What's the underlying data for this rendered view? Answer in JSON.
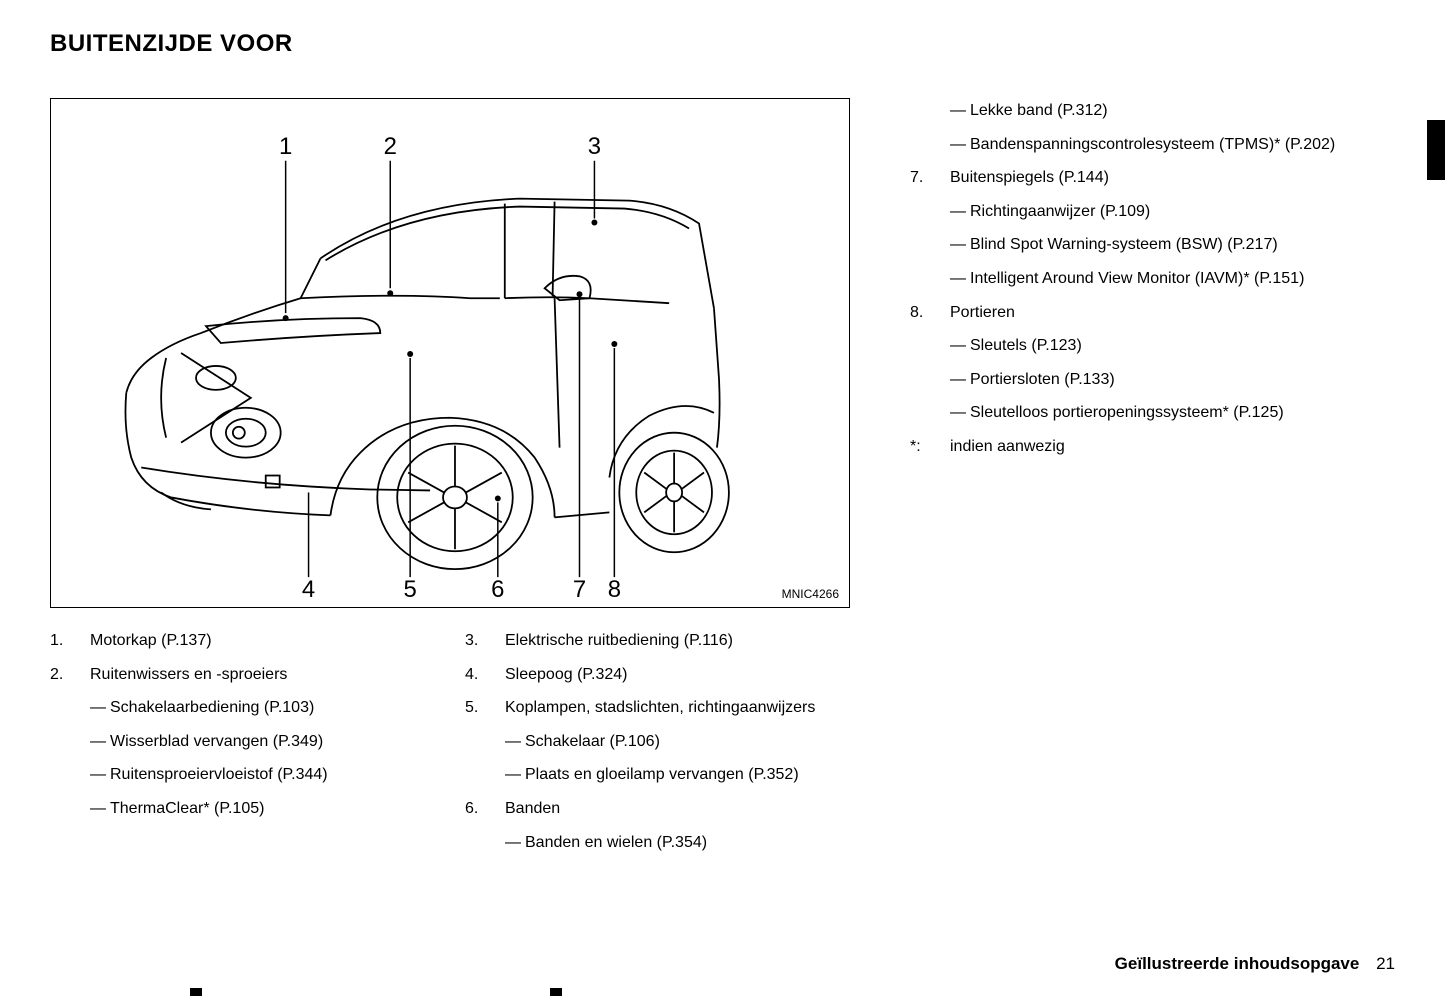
{
  "title": "BUITENZIJDE VOOR",
  "diagram": {
    "image_code": "MNIC4266",
    "top_labels": [
      "1",
      "2",
      "3"
    ],
    "bottom_labels": [
      "4",
      "5",
      "6",
      "7",
      "8"
    ]
  },
  "columns": {
    "col1": [
      {
        "num": "1.",
        "text": "Motorkap (P.137)",
        "subs": []
      },
      {
        "num": "2.",
        "text": "Ruitenwissers en -sproeiers",
        "subs": [
          "Schakelaarbediening (P.103)",
          "Wisserblad vervangen (P.349)",
          "Ruitensproeiervloeistof (P.344)",
          "ThermaClear* (P.105)"
        ]
      }
    ],
    "col2": [
      {
        "num": "3.",
        "text": "Elektrische ruitbediening (P.116)",
        "subs": []
      },
      {
        "num": "4.",
        "text": "Sleepoog (P.324)",
        "subs": []
      },
      {
        "num": "5.",
        "text": "Koplampen, stadslichten, richtingaanwijzers",
        "subs": [
          "Schakelaar (P.106)",
          "Plaats en gloeilamp vervangen (P.352)"
        ]
      },
      {
        "num": "6.",
        "text": "Banden",
        "subs": [
          "Banden en wielen (P.354)"
        ]
      }
    ],
    "col3": [
      {
        "num": "",
        "text": "",
        "subs": [
          "Lekke band (P.312)",
          "Bandenspanningscontrolesysteem (TPMS)* (P.202)"
        ]
      },
      {
        "num": "7.",
        "text": "Buitenspiegels (P.144)",
        "subs": [
          "Richtingaanwijzer (P.109)",
          "Blind Spot Warning-systeem (BSW) (P.217)",
          "Intelligent Around View Monitor (IAVM)* (P.151)"
        ]
      },
      {
        "num": "8.",
        "text": "Portieren",
        "subs": [
          "Sleutels (P.123)",
          "Portiersloten (P.133)",
          "Sleutelloos portieropeningssysteem* (P.125)"
        ]
      },
      {
        "num": "*:",
        "text": "indien aanwezig",
        "subs": []
      }
    ]
  },
  "footer": {
    "text": "Geïllustreerde inhoudsopgave",
    "page": "21"
  }
}
